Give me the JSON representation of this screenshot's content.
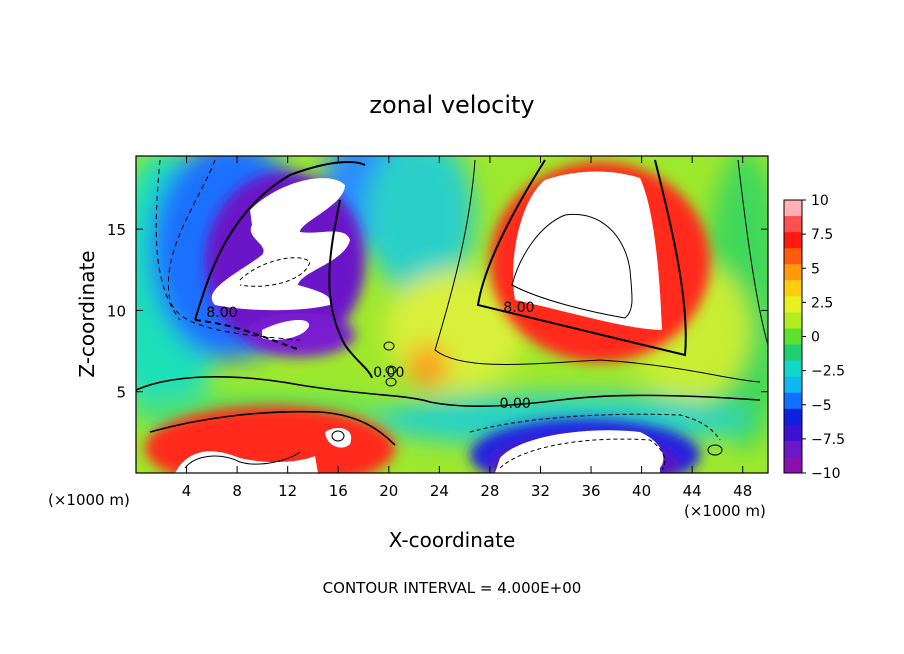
{
  "chart_data": {
    "type": "heatmap",
    "title": "zonal velocity",
    "xlabel": "X-coordinate",
    "ylabel": "Z-coordinate",
    "x_unit": "(×1000 m)",
    "x_unit_right": "(×1000 m)",
    "xlim": [
      0,
      50
    ],
    "ylim": [
      0,
      19.5
    ],
    "x_ticks": [
      4,
      8,
      12,
      16,
      20,
      24,
      28,
      32,
      36,
      40,
      44,
      48
    ],
    "x_tick_labels": [
      "4",
      "8",
      "12",
      "16",
      "20",
      "24",
      "28",
      "32",
      "36",
      "40",
      "44",
      "48"
    ],
    "y_ticks": [
      5,
      10,
      15
    ],
    "y_tick_labels": [
      "5",
      "10",
      "15"
    ],
    "colorbar": {
      "range": [
        -10,
        10
      ],
      "ticks": [
        10,
        7.5,
        5,
        2.5,
        0,
        -2.5,
        -5,
        -7.5,
        -10
      ],
      "tick_labels": [
        "10",
        "7.5",
        "5",
        "2.5",
        "0",
        "−2.5",
        "−5",
        "−7.5",
        "−10"
      ]
    },
    "contour_interval_text": "CONTOUR INTERVAL = 4.000E+00",
    "contour_labels": [
      {
        "text": "8.00",
        "x": 6.8,
        "z": 9.6
      },
      {
        "text": "0.00",
        "x": 20.0,
        "z": 5.9
      },
      {
        "text": "8.00",
        "x": 30.3,
        "z": 9.9
      },
      {
        "text": "0.00",
        "x": 30.0,
        "z": 4.0
      }
    ],
    "features": [
      {
        "kind": "negative-core",
        "x": 10.8,
        "z": 14.6,
        "rx": 5.2,
        "rz": 4.2,
        "value": -12
      },
      {
        "kind": "negative-lobe",
        "x": 12.2,
        "z": 8.9,
        "rx": 2.5,
        "rz": 1.1,
        "value": -10
      },
      {
        "kind": "positive-core",
        "x": 35.0,
        "z": 14.3,
        "rx": 5.8,
        "rz": 4.8,
        "value": 13
      },
      {
        "kind": "positive-surface",
        "x": 10.6,
        "z": 1.2,
        "rx": 7.5,
        "rz": 1.5,
        "value": 11
      },
      {
        "kind": "negative-surface",
        "x": 36.0,
        "z": 1.2,
        "rx": 7.5,
        "rz": 1.5,
        "value": -11
      }
    ]
  }
}
